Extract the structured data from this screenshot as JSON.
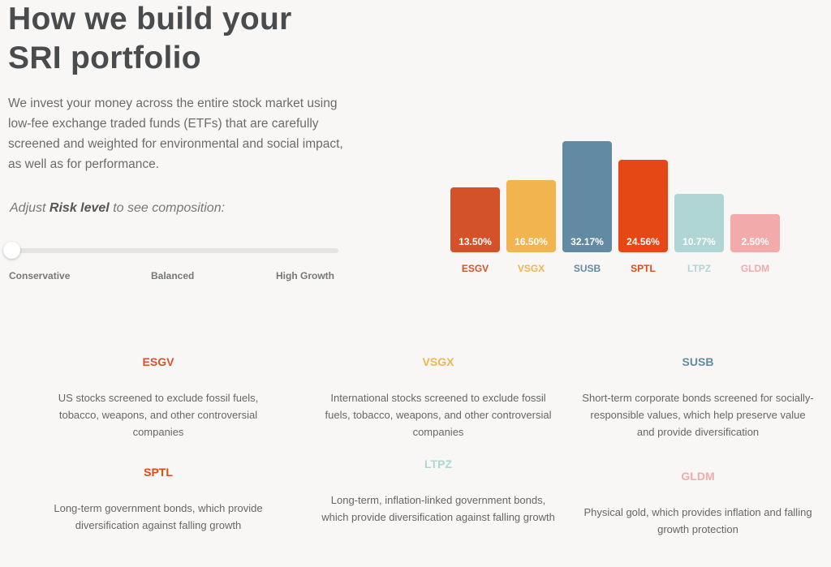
{
  "title_line1": "How we build your",
  "title_line2": "SRI portfolio",
  "intro": "We invest your money across the entire stock market using low-fee exchange traded funds (ETFs) that are carefully screened and weighted for environmental and social impact, as well as for performance.",
  "adjust": {
    "prefix": "Adjust ",
    "bold": "Risk level",
    "suffix": " to see composition:"
  },
  "slider": {
    "value": 0,
    "labels": [
      "Conservative",
      "Balanced",
      "High Growth"
    ]
  },
  "chart_data": {
    "type": "bar",
    "categories": [
      "ESGV",
      "VSGX",
      "SUSB",
      "SPTL",
      "LTPZ",
      "GLDM"
    ],
    "values": [
      13.5,
      16.5,
      32.17,
      24.56,
      10.77,
      2.5
    ],
    "labels": [
      "13.50%",
      "16.50%",
      "32.17%",
      "24.56%",
      "10.77%",
      "2.50%"
    ],
    "colors": [
      "#d4522a",
      "#f1b44f",
      "#628aa3",
      "#e54715",
      "#b0d5d5",
      "#f3aaaa"
    ]
  },
  "funds": [
    {
      "ticker": "ESGV",
      "color": "#d4522a",
      "desc": "US stocks screened to exclude fossil fuels, tobacco, weapons, and other controversial companies"
    },
    {
      "ticker": "VSGX",
      "color": "#f1b44f",
      "desc": "International stocks screened to exclude fossil fuels, tobacco, weapons, and other controversial companies"
    },
    {
      "ticker": "SUSB",
      "color": "#628aa3",
      "desc": "Short-term corporate bonds screened for socially-responsible values, which help preserve value and provide diversification"
    },
    {
      "ticker": "SPTL",
      "color": "#e54715",
      "desc": "Long-term government bonds, which provide diversification against falling growth"
    },
    {
      "ticker": "LTPZ",
      "color": "#b0d5d5",
      "desc": "Long-term, inflation-linked government bonds, which provide diversification against falling growth"
    },
    {
      "ticker": "GLDM",
      "color": "#f3aaaa",
      "desc": "Physical gold, which provides inflation and falling growth protection"
    }
  ]
}
